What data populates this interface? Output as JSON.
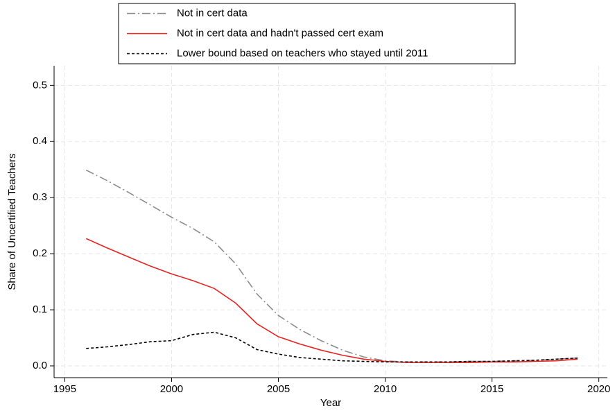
{
  "chart_data": {
    "type": "line",
    "x_label": "Year",
    "y_label": "Share of Uncertified Teachers",
    "x": [
      1996,
      1997,
      1998,
      1999,
      2000,
      2001,
      2002,
      2003,
      2004,
      2005,
      2006,
      2007,
      2008,
      2009,
      2010,
      2011,
      2012,
      2013,
      2014,
      2015,
      2016,
      2017,
      2018,
      2019
    ],
    "series": [
      {
        "name": "Not in cert data",
        "color": "#8c8c8c",
        "dash": "12 4 2 4",
        "values": [
          0.349,
          0.33,
          0.309,
          0.287,
          0.265,
          0.245,
          0.221,
          0.182,
          0.128,
          0.09,
          0.065,
          0.045,
          0.028,
          0.016,
          0.009,
          0.007,
          0.007,
          0.007,
          0.008,
          0.008,
          0.009,
          0.01,
          0.012,
          0.014
        ]
      },
      {
        "name": "Not in cert data and hadn't passed cert exam",
        "color": "#e8221f",
        "dash": "none",
        "values": [
          0.227,
          0.21,
          0.194,
          0.178,
          0.164,
          0.152,
          0.138,
          0.112,
          0.075,
          0.052,
          0.039,
          0.028,
          0.019,
          0.012,
          0.008,
          0.006,
          0.006,
          0.006,
          0.006,
          0.007,
          0.007,
          0.008,
          0.009,
          0.012
        ]
      },
      {
        "name": "Lower bound based on teachers who stayed until 2011",
        "color": "#000000",
        "dash": "4 3",
        "values": [
          0.031,
          0.034,
          0.038,
          0.043,
          0.045,
          0.056,
          0.06,
          0.05,
          0.029,
          0.021,
          0.015,
          0.012,
          0.009,
          0.008,
          0.007,
          0.007,
          0.007,
          0.007,
          0.008,
          0.008,
          0.009,
          0.01,
          0.012,
          0.014
        ]
      }
    ],
    "xlim": [
      1994.5,
      2020.4
    ],
    "ylim": [
      -0.021,
      0.535
    ],
    "xticks": [
      1995,
      2000,
      2005,
      2010,
      2015,
      2020
    ],
    "yticks": [
      {
        "value": 0,
        "label": "0.0"
      },
      0.1,
      0.2,
      0.3,
      0.4,
      0.5
    ],
    "grid": true,
    "legend": "top"
  }
}
